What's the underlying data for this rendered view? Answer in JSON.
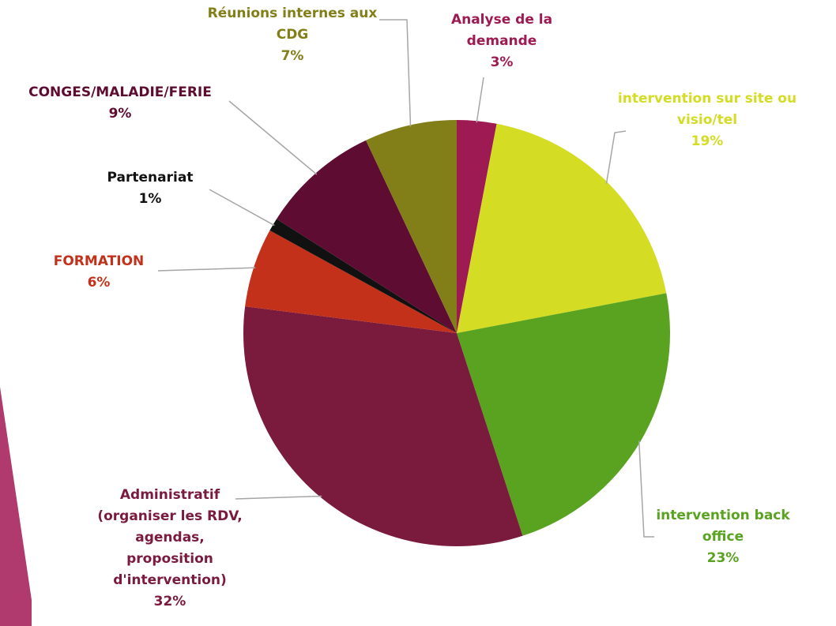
{
  "chart_data": {
    "type": "pie",
    "categories": [
      "Analyse de la demande",
      "intervention sur site ou visio/tel",
      "intervention back office",
      "Administratif (organiser les RDV, agendas, proposition d'intervention)",
      "FORMATION",
      "Partenariat",
      "CONGES/MALADIE/FERIE",
      "Réunions internes aux CDG"
    ],
    "values": [
      3,
      19,
      23,
      32,
      6,
      1,
      9,
      7
    ],
    "value_labels": [
      "3%",
      "19%",
      "23%",
      "32%",
      "6%",
      "1%",
      "9%",
      "7%"
    ],
    "colors": [
      "#9e1a52",
      "#d4dc24",
      "#5aa321",
      "#7a1a3c",
      "#c4311a",
      "#111111",
      "#5e0c32",
      "#827f18"
    ]
  }
}
